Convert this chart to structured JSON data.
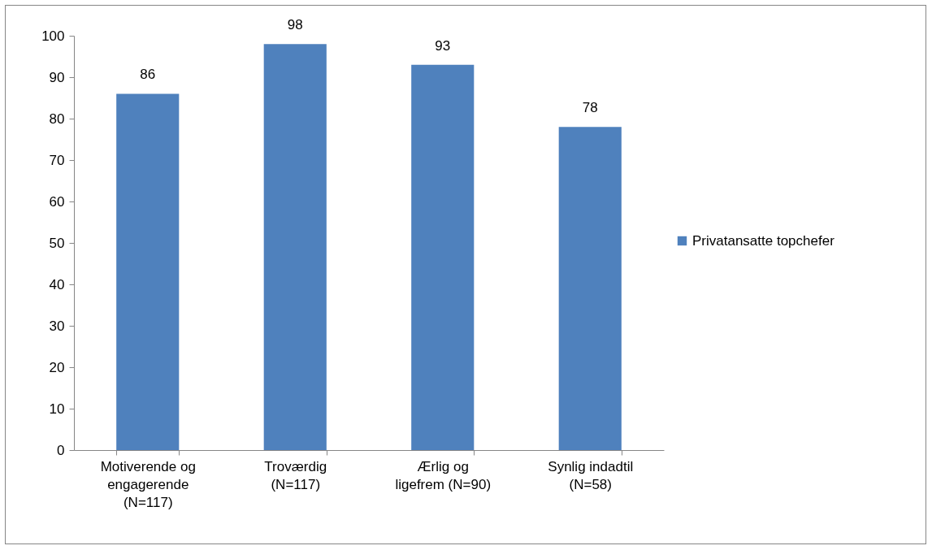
{
  "chart_data": {
    "type": "bar",
    "categories": [
      "Motiverende og\nengagerende\n(N=117)",
      "Troværdig\n(N=117)",
      "Ærlig og\nligefrem (N=90)",
      "Synlig indadtil\n(N=58)"
    ],
    "series": [
      {
        "name": "Privatansatte topchefer",
        "color": "#4f81bd",
        "values": [
          86,
          98,
          93,
          78
        ]
      }
    ],
    "ylim": [
      0,
      100
    ],
    "yticks": [
      0,
      10,
      20,
      30,
      40,
      50,
      60,
      70,
      80,
      90,
      100
    ],
    "data_labels": true,
    "legend": "right"
  }
}
